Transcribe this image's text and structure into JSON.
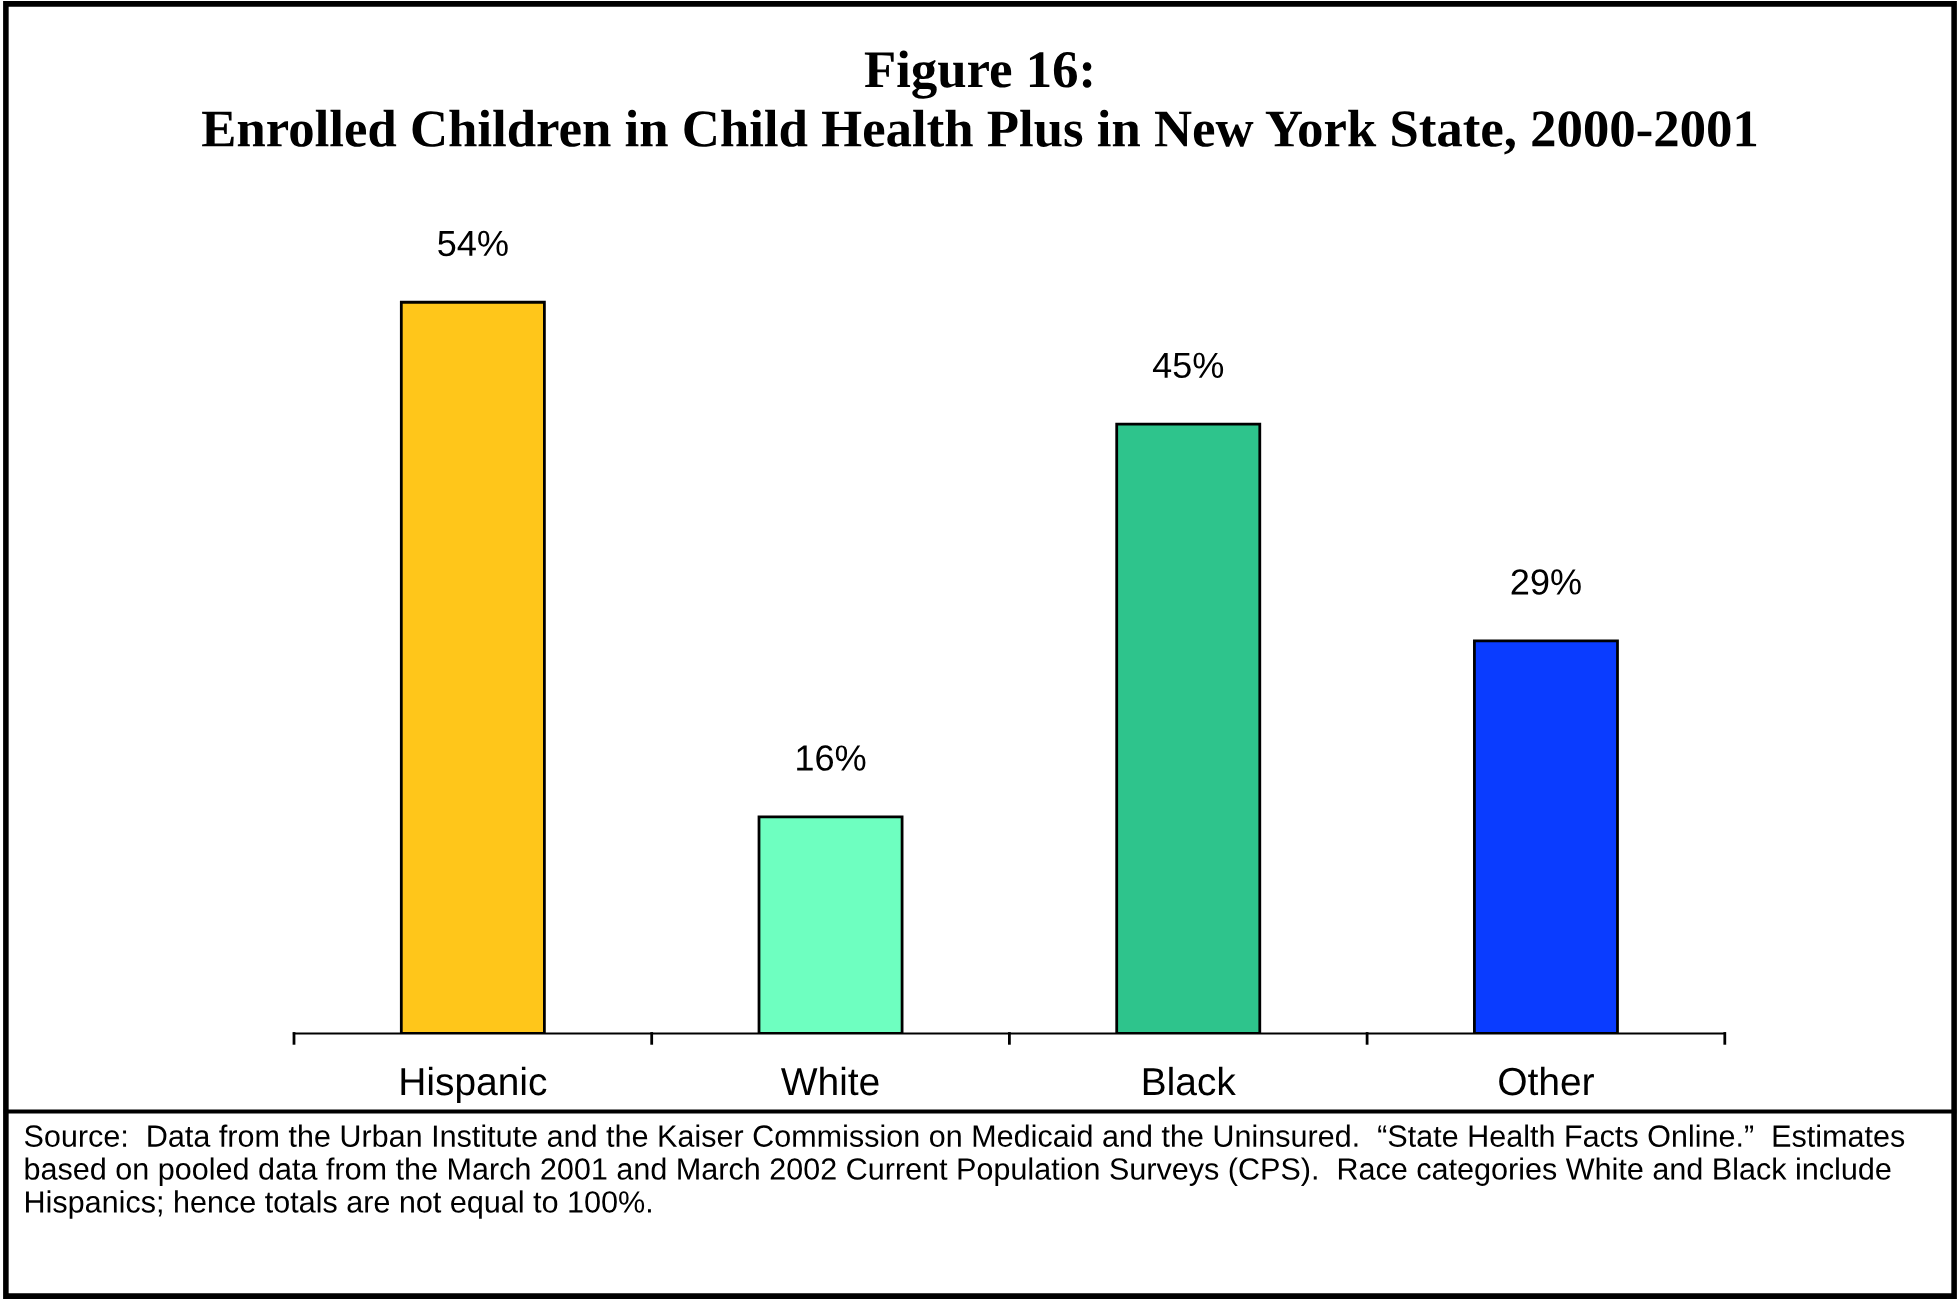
{
  "chart_data": {
    "type": "bar",
    "title": "Figure 16:\nEnrolled Children in Child Health Plus in New York State, 2000-2001",
    "categories": [
      "Hispanic",
      "White",
      "Black",
      "Other"
    ],
    "values": [
      54,
      16,
      45,
      29
    ],
    "value_labels": [
      "54%",
      "16%",
      "45%",
      "29%"
    ],
    "colors": [
      "#ffc61a",
      "#6effc0",
      "#2ec48c",
      "#0a3cff"
    ],
    "grid": false,
    "legend": false,
    "annotations": [
      "Source:  Data from the Urban Institute and the Kaiser Commission on Medicaid and the Uninsured.  “State Health Facts Online.”  Estimates based on pooled data from the March 2001 and March 2002 Current Population Surveys (CPS).  Race categories White and Black include Hispanics; hence totals are not equal to 100%."
    ]
  }
}
